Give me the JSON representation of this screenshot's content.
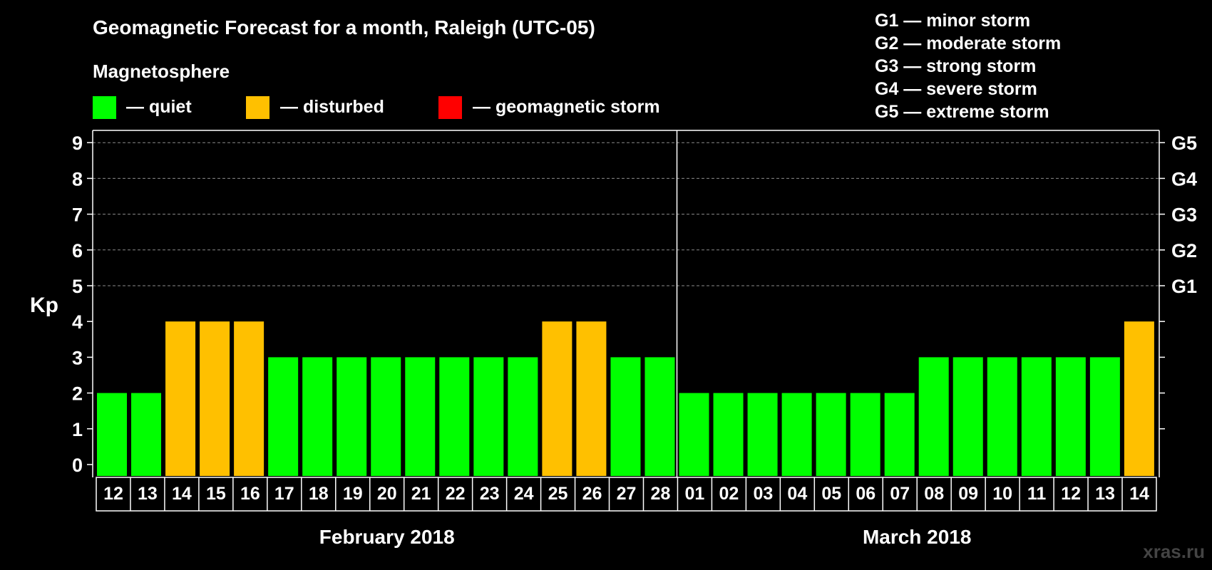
{
  "title": "Geomagnetic Forecast for a month, Raleigh (UTC-05)",
  "legend": {
    "heading": "Magnetosphere",
    "items": [
      {
        "label": "— quiet",
        "color": "#00ff00"
      },
      {
        "label": "— disturbed",
        "color": "#ffc000"
      },
      {
        "label": "— geomagnetic storm",
        "color": "#ff0000"
      }
    ],
    "storm_levels": [
      "G1 — minor storm",
      "G2 — moderate storm",
      "G3 — strong storm",
      "G4 — severe storm",
      "G5 — extreme storm"
    ]
  },
  "watermark": "xras.ru",
  "chart_data": {
    "type": "bar",
    "ylabel": "Kp",
    "ylim": [
      0,
      9
    ],
    "yticks": [
      0,
      1,
      2,
      3,
      4,
      5,
      6,
      7,
      8,
      9
    ],
    "right_axis_labels": [
      {
        "value": 5,
        "label": "G1"
      },
      {
        "value": 6,
        "label": "G2"
      },
      {
        "value": 7,
        "label": "G3"
      },
      {
        "value": 8,
        "label": "G4"
      },
      {
        "value": 9,
        "label": "G5"
      }
    ],
    "grid": "dashed at Kp 5-9",
    "months": [
      {
        "label": "February 2018",
        "start_index": 0,
        "count": 17
      },
      {
        "label": "March 2018",
        "start_index": 17,
        "count": 14
      }
    ],
    "categories": [
      "12",
      "13",
      "14",
      "15",
      "16",
      "17",
      "18",
      "19",
      "20",
      "21",
      "22",
      "23",
      "24",
      "25",
      "26",
      "27",
      "28",
      "01",
      "02",
      "03",
      "04",
      "05",
      "06",
      "07",
      "08",
      "09",
      "10",
      "11",
      "12",
      "13",
      "14"
    ],
    "values": [
      2,
      2,
      4,
      4,
      4,
      3,
      3,
      3,
      3,
      3,
      3,
      3,
      3,
      4,
      4,
      3,
      3,
      2,
      2,
      2,
      2,
      2,
      2,
      2,
      3,
      3,
      3,
      3,
      3,
      3,
      4
    ],
    "colors": {
      "quiet": "#00ff00",
      "disturbed": "#ffc000",
      "storm": "#ff0000"
    }
  }
}
